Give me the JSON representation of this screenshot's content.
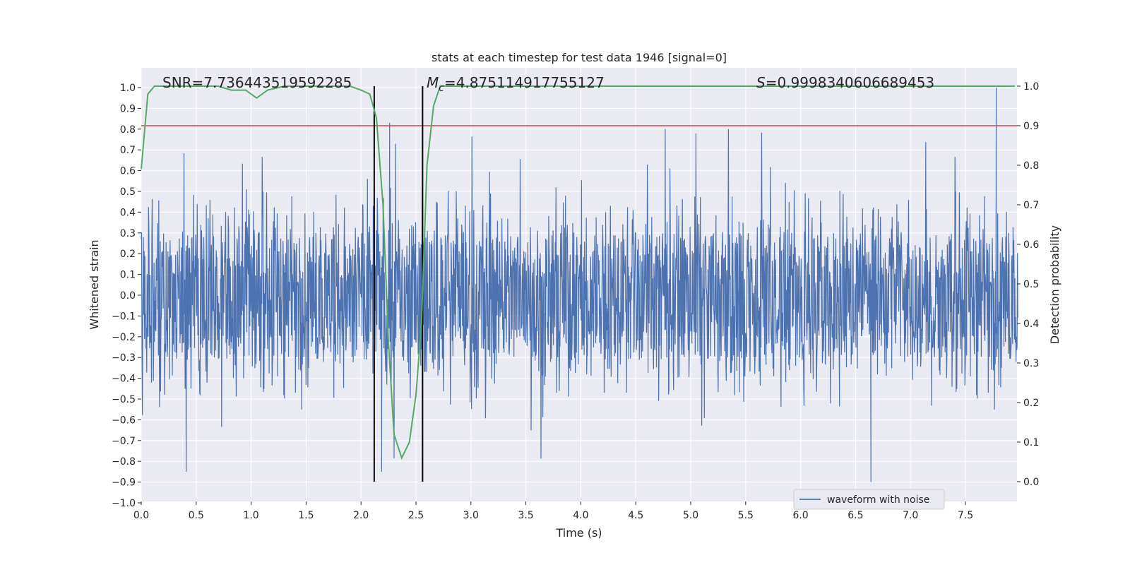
{
  "chart_data": {
    "type": "line",
    "title": "stats at each timestep for test data 1946 [signal=0]",
    "xlabel": "Time (s)",
    "ylabel": "Whitened strain",
    "y2label": "Detection probability",
    "xlim": [
      0.0,
      8.0
    ],
    "ylim": [
      -1.0,
      1.1
    ],
    "y2lim": [
      -0.05,
      1.05
    ],
    "grid": true,
    "x_ticks": [
      "0.0",
      "0.5",
      "1.0",
      "1.5",
      "2.0",
      "2.5",
      "3.0",
      "3.5",
      "4.0",
      "4.5",
      "5.0",
      "5.5",
      "6.0",
      "6.5",
      "7.0",
      "7.5"
    ],
    "y_ticks": [
      "1.0",
      "0.9",
      "0.8",
      "0.7",
      "0.6",
      "0.5",
      "0.4",
      "0.3",
      "0.2",
      "0.1",
      "0.0",
      "−0.1",
      "−0.2",
      "−0.3",
      "−0.4",
      "−0.5",
      "−0.6",
      "−0.7",
      "−0.8",
      "−0.9",
      "−1.0"
    ],
    "y2_ticks": [
      "1.0",
      "0.9",
      "0.8",
      "0.7",
      "0.6",
      "0.5",
      "0.4",
      "0.3",
      "0.2",
      "0.1",
      "0.0"
    ],
    "annotations": {
      "snr": "SNR=7.736443519592285",
      "mc_symbol": "M",
      "mc_sub": "c",
      "mc_value": "=4.875114917755127",
      "s_symbol": "S",
      "s_value": "=0.9998340606689453"
    },
    "legend": {
      "position": "lower-right",
      "entries": [
        "waveform with noise"
      ]
    },
    "colors": {
      "waveform": "#4c72b0",
      "probability": "#55a868",
      "threshold": "#c44e52",
      "marker": "#000000",
      "background": "#eaeaf2",
      "grid": "#ffffff"
    },
    "threshold_probability": 0.9,
    "vertical_markers_s": [
      2.12,
      2.56
    ],
    "waveform": {
      "name": "waveform with noise",
      "core_amplitude": 0.3,
      "max_peak": 1.0,
      "min_peak": -0.9
    },
    "probability_series": {
      "name": "Detection probability",
      "x": [
        0.0,
        0.06,
        0.12,
        0.3,
        0.5,
        0.7,
        0.82,
        0.95,
        1.05,
        1.15,
        1.3,
        1.6,
        1.9,
        2.0,
        2.08,
        2.14,
        2.2,
        2.25,
        2.3,
        2.37,
        2.44,
        2.5,
        2.55,
        2.6,
        2.66,
        2.72,
        3.0,
        4.0,
        5.0,
        5.5,
        6.0,
        7.0,
        7.95
      ],
      "y": [
        0.79,
        0.98,
        1.0,
        1.0,
        1.0,
        1.0,
        0.99,
        0.99,
        0.97,
        0.99,
        1.0,
        1.0,
        1.0,
        0.99,
        0.98,
        0.92,
        0.7,
        0.35,
        0.12,
        0.06,
        0.1,
        0.22,
        0.4,
        0.8,
        0.95,
        1.0,
        1.0,
        1.0,
        1.0,
        1.0,
        1.0,
        1.0,
        1.0
      ]
    }
  }
}
